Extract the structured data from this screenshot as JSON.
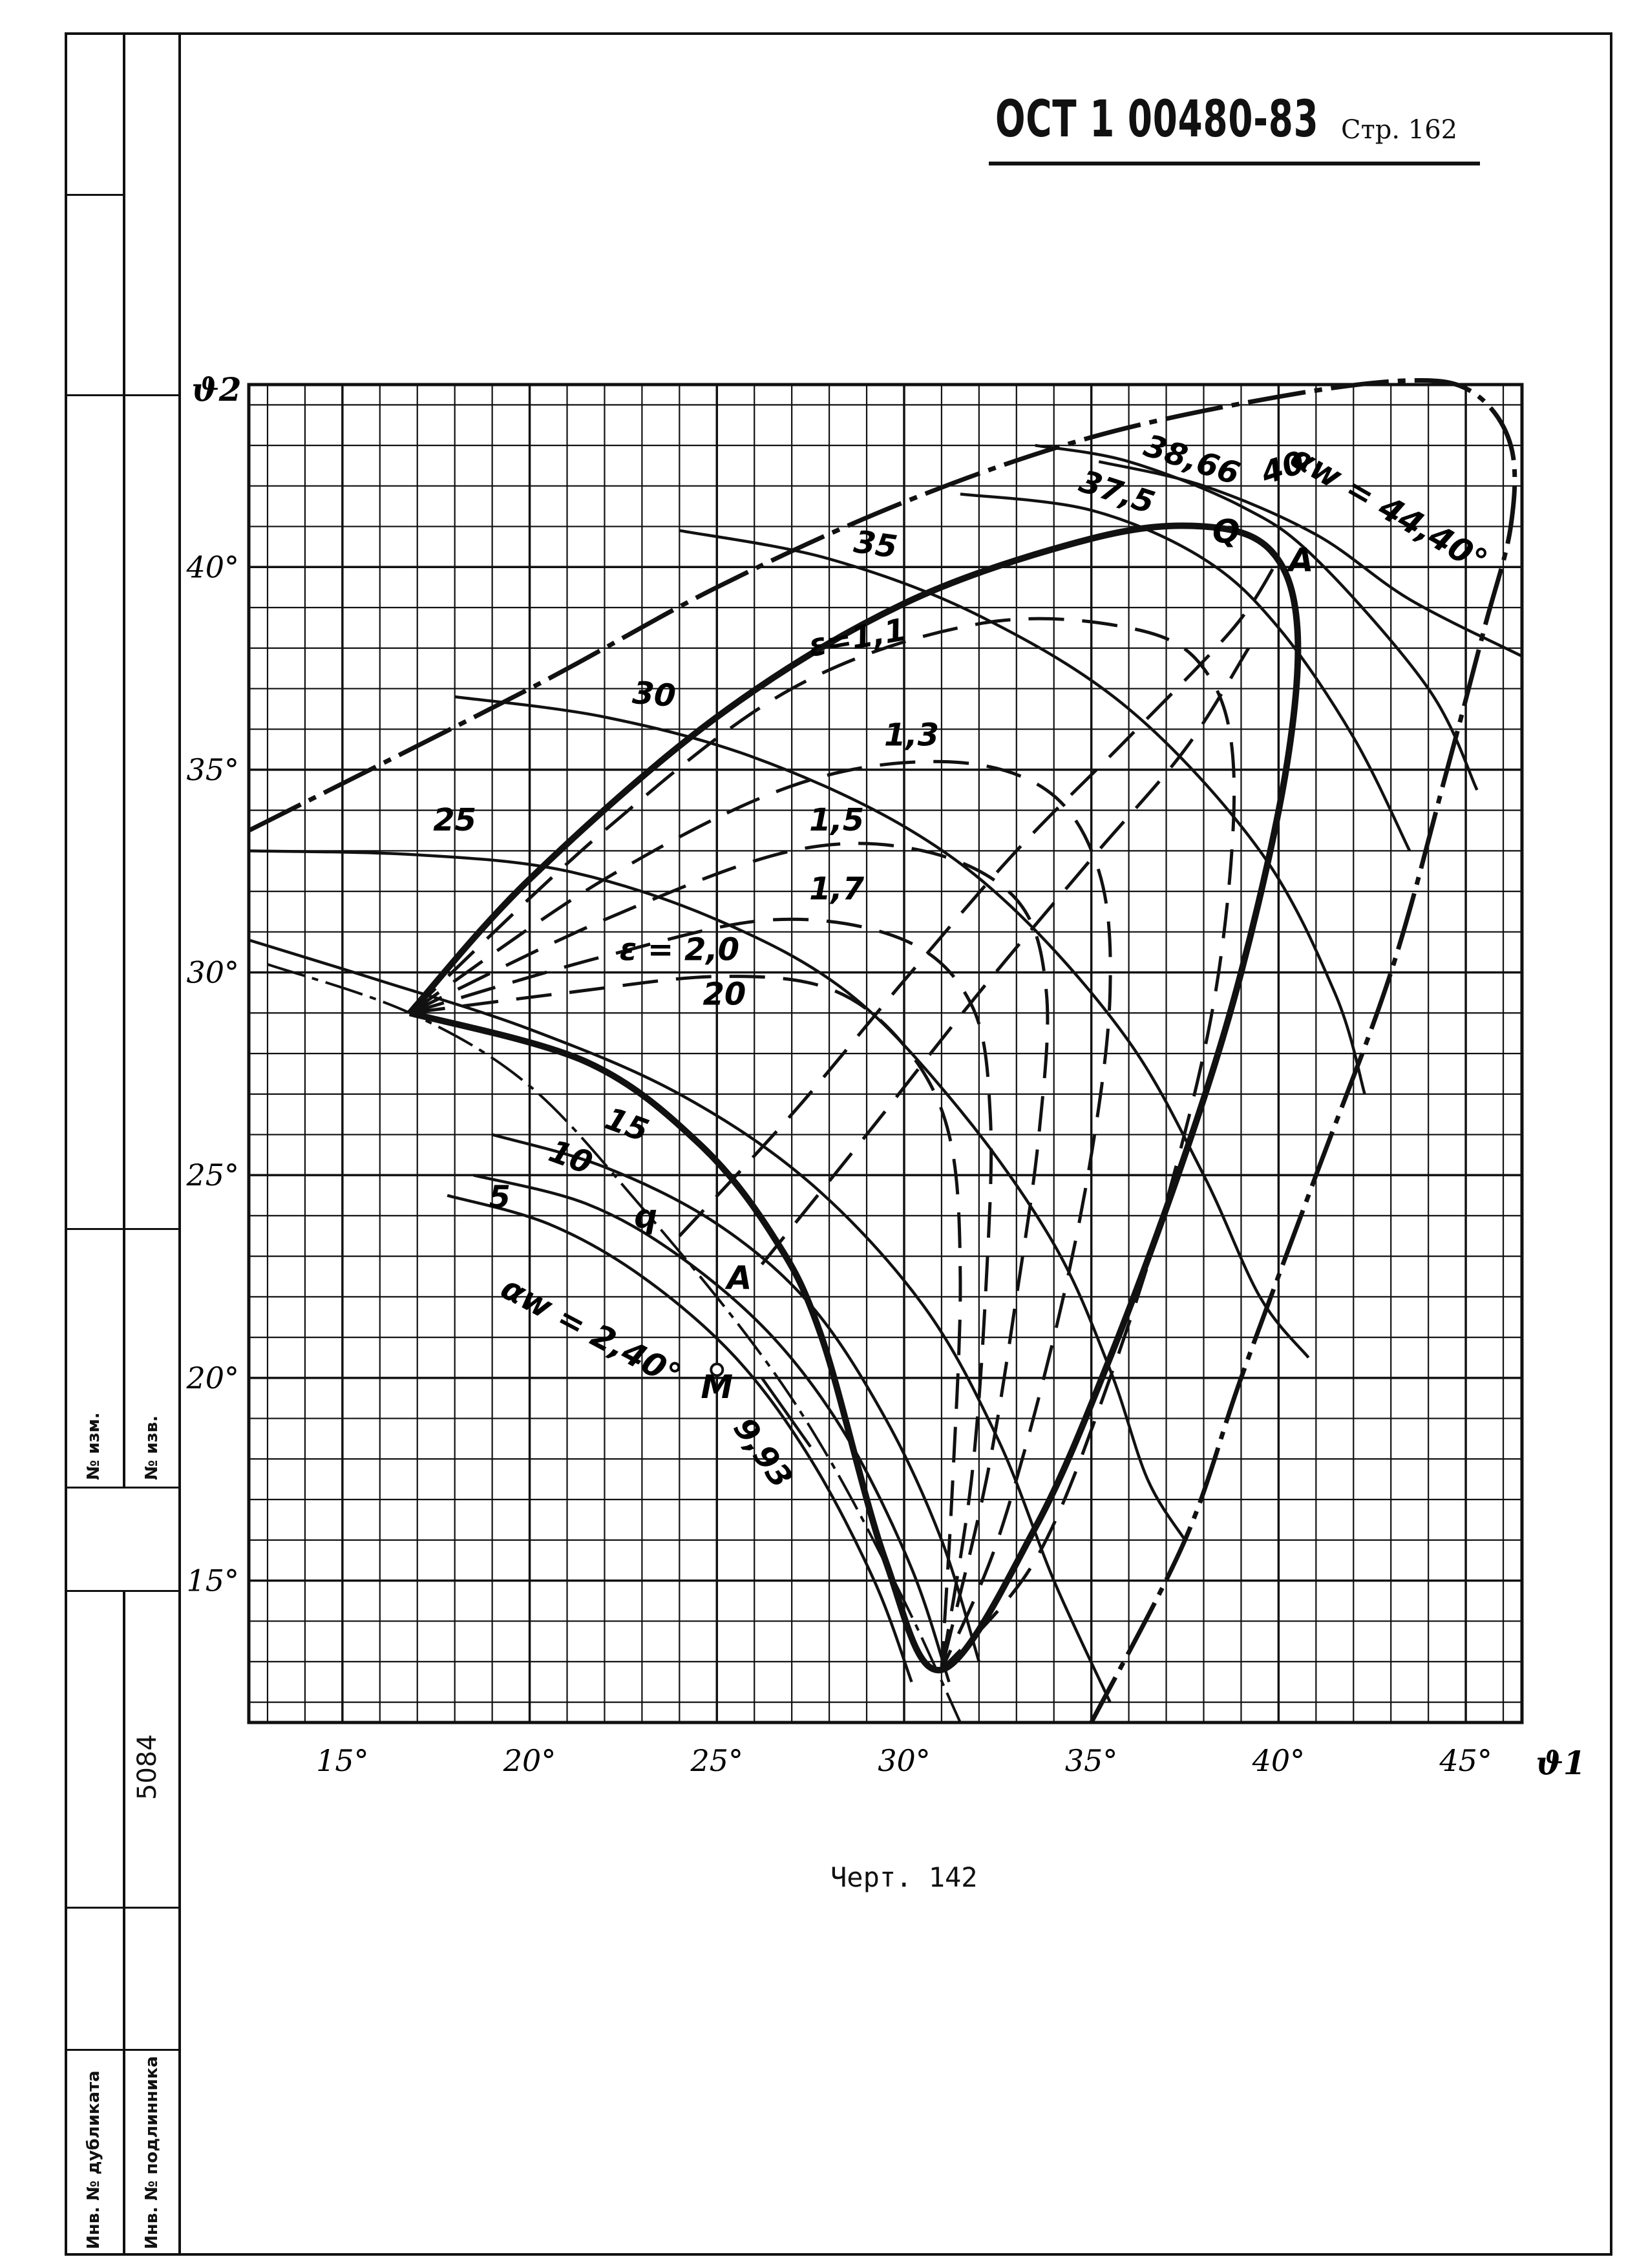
{
  "header": {
    "doc_code": "ОСТ 1 00480-83",
    "page_label": "Стр. 162"
  },
  "caption": "Черт. 142",
  "margin_strip": {
    "labels": [
      "№ изм.",
      "№ изв.",
      "5084",
      "Инв. № дубликата",
      "Инв. № подлинника"
    ]
  },
  "chart_data": {
    "type": "line",
    "xlabel": "ϑ1",
    "ylabel": "ϑ2",
    "xlim": [
      12.5,
      46.5
    ],
    "ylim": [
      11.5,
      44.5
    ],
    "grid": true,
    "x_ticks": [
      "15°",
      "20°",
      "25°",
      "30°",
      "35°",
      "40°",
      "45°"
    ],
    "y_ticks": [
      "15°",
      "20°",
      "25°",
      "30°",
      "35°",
      "40°"
    ],
    "x_tick_values": [
      15,
      20,
      25,
      30,
      35,
      40,
      45
    ],
    "y_tick_values": [
      15,
      20,
      25,
      30,
      35,
      40
    ],
    "boundary_heavy": {
      "labels": [
        "Q",
        "A",
        "q",
        "A"
      ],
      "points": [
        [
          16.8,
          29.0
        ],
        [
          20,
          32.3
        ],
        [
          25,
          36.3
        ],
        [
          30,
          39.1
        ],
        [
          35,
          40.7
        ],
        [
          38,
          41.0
        ],
        [
          39.8,
          40.4
        ],
        [
          40.5,
          38.5
        ],
        [
          40.2,
          35
        ],
        [
          39,
          30
        ],
        [
          37.5,
          25.5
        ],
        [
          35.5,
          20.5
        ],
        [
          33.5,
          16.3
        ],
        [
          31,
          12.8
        ],
        [
          29.5,
          15.5
        ],
        [
          27.8,
          21.0
        ],
        [
          26.5,
          23.5
        ],
        [
          24.5,
          25.8
        ],
        [
          21.5,
          27.8
        ],
        [
          16.8,
          29.0
        ]
      ]
    },
    "outer_envelope": {
      "labels": [
        "αw = 44,40°",
        "αw = 2,40°",
        "M"
      ],
      "points": [
        [
          12.5,
          33.5
        ],
        [
          20,
          37.0
        ],
        [
          25,
          39.5
        ],
        [
          30,
          41.6
        ],
        [
          35,
          43.2
        ],
        [
          40,
          44.2
        ],
        [
          43.5,
          44.6
        ],
        [
          45.2,
          44.3
        ],
        [
          46.2,
          43.0
        ],
        [
          46.2,
          41.0
        ],
        [
          45.5,
          38.5
        ],
        [
          44.5,
          35.0
        ],
        [
          43,
          30.0
        ],
        [
          41,
          25.0
        ],
        [
          39,
          20.0
        ],
        [
          37.5,
          16.0
        ],
        [
          35.0,
          11.5
        ]
      ],
      "lower_points": [
        [
          13,
          30.2
        ],
        [
          16.8,
          29.0
        ],
        [
          20,
          27.2
        ],
        [
          23,
          24.2
        ],
        [
          26,
          20.8
        ],
        [
          28,
          18.0
        ],
        [
          30,
          14.5
        ],
        [
          31.5,
          11.5
        ]
      ]
    },
    "series": [
      {
        "name": "40",
        "style": "solid",
        "points": [
          [
            35.2,
            42.6
          ],
          [
            38,
            42.0
          ],
          [
            41,
            40.8
          ],
          [
            43.5,
            39.2
          ],
          [
            46.5,
            37.8
          ]
        ]
      },
      {
        "name": "38,66",
        "style": "solid",
        "points": [
          [
            33.5,
            43.0
          ],
          [
            36,
            42.6
          ],
          [
            39,
            41.5
          ],
          [
            41,
            40.2
          ],
          [
            44,
            37.0
          ],
          [
            45.3,
            34.5
          ]
        ]
      },
      {
        "name": "37,5",
        "style": "solid",
        "points": [
          [
            31.5,
            41.8
          ],
          [
            35,
            41.4
          ],
          [
            38,
            40.2
          ],
          [
            40,
            38.5
          ],
          [
            42,
            35.8
          ],
          [
            43.5,
            33.0
          ]
        ]
      },
      {
        "name": "35",
        "style": "solid",
        "points": [
          [
            24,
            40.9
          ],
          [
            28,
            40.2
          ],
          [
            32,
            38.8
          ],
          [
            36,
            36.5
          ],
          [
            39.5,
            33.0
          ],
          [
            41.5,
            29.5
          ],
          [
            42.3,
            27.0
          ]
        ]
      },
      {
        "name": "30",
        "style": "solid",
        "points": [
          [
            18,
            36.8
          ],
          [
            22,
            36.3
          ],
          [
            26,
            35.3
          ],
          [
            30,
            33.6
          ],
          [
            33,
            31.5
          ],
          [
            36,
            28.3
          ],
          [
            38,
            25.0
          ],
          [
            39.5,
            22.0
          ],
          [
            40.8,
            20.5
          ]
        ]
      },
      {
        "name": "25",
        "style": "solid",
        "points": [
          [
            12.5,
            33.0
          ],
          [
            17,
            32.9
          ],
          [
            21,
            32.5
          ],
          [
            25,
            31.3
          ],
          [
            28.5,
            29.5
          ],
          [
            31.5,
            26.6
          ],
          [
            34,
            23.3
          ],
          [
            35.5,
            20.2
          ],
          [
            36.5,
            17.5
          ],
          [
            37.5,
            16.0
          ]
        ]
      },
      {
        "name": "20",
        "style": "solid",
        "points": [
          [
            12.5,
            30.8
          ],
          [
            16,
            29.8
          ],
          [
            20,
            28.6
          ],
          [
            24,
            27.0
          ],
          [
            27.5,
            24.8
          ],
          [
            30.5,
            21.8
          ],
          [
            32.5,
            18.5
          ],
          [
            34,
            15.0
          ],
          [
            35.5,
            12.0
          ]
        ]
      },
      {
        "name": "15",
        "style": "solid",
        "points": [
          [
            19,
            26.0
          ],
          [
            22,
            25.2
          ],
          [
            25,
            23.8
          ],
          [
            27.5,
            21.8
          ],
          [
            29.5,
            19.0
          ],
          [
            31,
            16.0
          ],
          [
            32,
            13.0
          ]
        ]
      },
      {
        "name": "10",
        "style": "solid",
        "points": [
          [
            18.5,
            25.0
          ],
          [
            21.5,
            24.3
          ],
          [
            24,
            23.0
          ],
          [
            26.5,
            21.0
          ],
          [
            28.5,
            18.5
          ],
          [
            30.2,
            15.3
          ],
          [
            31.2,
            12.5
          ]
        ]
      },
      {
        "name": "5",
        "style": "solid",
        "points": [
          [
            17.8,
            24.5
          ],
          [
            20.5,
            23.8
          ],
          [
            23,
            22.5
          ],
          [
            25.5,
            20.5
          ],
          [
            27.5,
            18.0
          ],
          [
            29.2,
            15.0
          ],
          [
            30.2,
            12.5
          ]
        ]
      },
      {
        "name": "9,93",
        "style": "solid",
        "points": [
          [
            26.2,
            20.0
          ],
          [
            27.5,
            18.3
          ]
        ]
      },
      {
        "name": "ε=1,1",
        "style": "dashed",
        "points": [
          [
            16.8,
            29.0
          ],
          [
            22,
            33.5
          ],
          [
            27,
            37.0
          ],
          [
            32,
            38.6
          ],
          [
            36,
            38.5
          ],
          [
            38,
            37.5
          ],
          [
            38.8,
            35.0
          ],
          [
            38.4,
            30.0
          ],
          [
            37.2,
            25.0
          ],
          [
            35.5,
            20.0
          ],
          [
            33.5,
            15.5
          ],
          [
            31,
            12.8
          ]
        ]
      },
      {
        "name": "1,3",
        "style": "dashed",
        "points": [
          [
            16.8,
            29.0
          ],
          [
            22,
            32.3
          ],
          [
            27,
            34.6
          ],
          [
            31,
            35.2
          ],
          [
            33.8,
            34.5
          ],
          [
            35.2,
            32.5
          ],
          [
            35.5,
            29.5
          ],
          [
            35.0,
            25.5
          ],
          [
            34,
            21.0
          ],
          [
            32.5,
            16.0
          ],
          [
            31,
            12.8
          ]
        ]
      },
      {
        "name": "1,5",
        "style": "dashed",
        "points": [
          [
            16.8,
            29.0
          ],
          [
            22,
            31.3
          ],
          [
            27,
            33.0
          ],
          [
            30.5,
            33.0
          ],
          [
            33,
            31.8
          ],
          [
            33.8,
            29.5
          ],
          [
            33.6,
            26.0
          ],
          [
            33,
            22.0
          ],
          [
            32.2,
            17.5
          ],
          [
            31,
            12.8
          ]
        ]
      },
      {
        "name": "1,7",
        "style": "dashed",
        "points": [
          [
            16.8,
            29.0
          ],
          [
            22,
            30.4
          ],
          [
            26.5,
            31.3
          ],
          [
            30,
            30.8
          ],
          [
            31.8,
            29.2
          ],
          [
            32.3,
            26.5
          ],
          [
            32.2,
            22.5
          ],
          [
            31.8,
            17.5
          ],
          [
            31,
            12.8
          ]
        ]
      },
      {
        "name": "ε = 2,0",
        "style": "dashed",
        "points": [
          [
            16.8,
            29.0
          ],
          [
            21,
            29.5
          ],
          [
            25,
            29.9
          ],
          [
            28,
            29.6
          ],
          [
            30,
            28.2
          ],
          [
            31.2,
            26.0
          ],
          [
            31.5,
            22.5
          ],
          [
            31.3,
            17.5
          ],
          [
            31,
            12.8
          ]
        ]
      },
      {
        "name": "",
        "style": "dashed",
        "points": [
          [
            24,
            23.5
          ],
          [
            27,
            26.5
          ],
          [
            30,
            29.8
          ],
          [
            33,
            33.0
          ],
          [
            36,
            35.8
          ],
          [
            38.8,
            38.5
          ],
          [
            40,
            40.2
          ]
        ]
      },
      {
        "name": "",
        "style": "dashed",
        "points": [
          [
            26.2,
            22.8
          ],
          [
            29,
            26.0
          ],
          [
            32,
            29.5
          ],
          [
            35,
            32.8
          ],
          [
            37.5,
            35.5
          ],
          [
            39.2,
            38.0
          ]
        ]
      }
    ],
    "annotations": [
      "Q",
      "A",
      "q",
      "A",
      "M",
      "αw = 44,40°",
      "αw = 2,40°",
      "9,93",
      "ε=1,1",
      "ε = 2,0",
      "1,3",
      "1,5",
      "1,7",
      "40",
      "38,66",
      "37,5",
      "35",
      "30",
      "25",
      "20",
      "15",
      "10",
      "5"
    ]
  }
}
